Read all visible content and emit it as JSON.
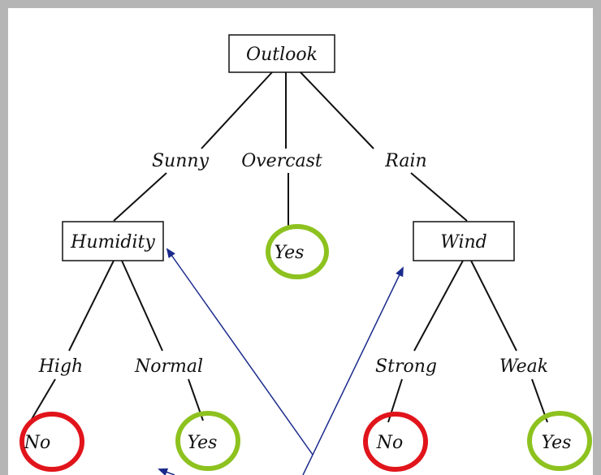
{
  "diagram": {
    "root": {
      "label": "Outlook"
    },
    "branches": {
      "sunny": "Sunny",
      "overcast": "Overcast",
      "rain": "Rain",
      "high": "High",
      "normal": "Normal",
      "strong": "Strong",
      "weak": "Weak"
    },
    "nodes": {
      "humidity": "Humidity",
      "wind": "Wind"
    },
    "leaves": {
      "overcast_yes": "Yes",
      "high_no": "No",
      "normal_yes": "Yes",
      "strong_no": "No",
      "weak_yes": "Yes"
    },
    "colors": {
      "frame": "#b5b5b5",
      "yes_circle": "#8dc21f",
      "no_circle": "#e1141b",
      "arrow": "#1a2a8c",
      "line": "#111111"
    }
  }
}
